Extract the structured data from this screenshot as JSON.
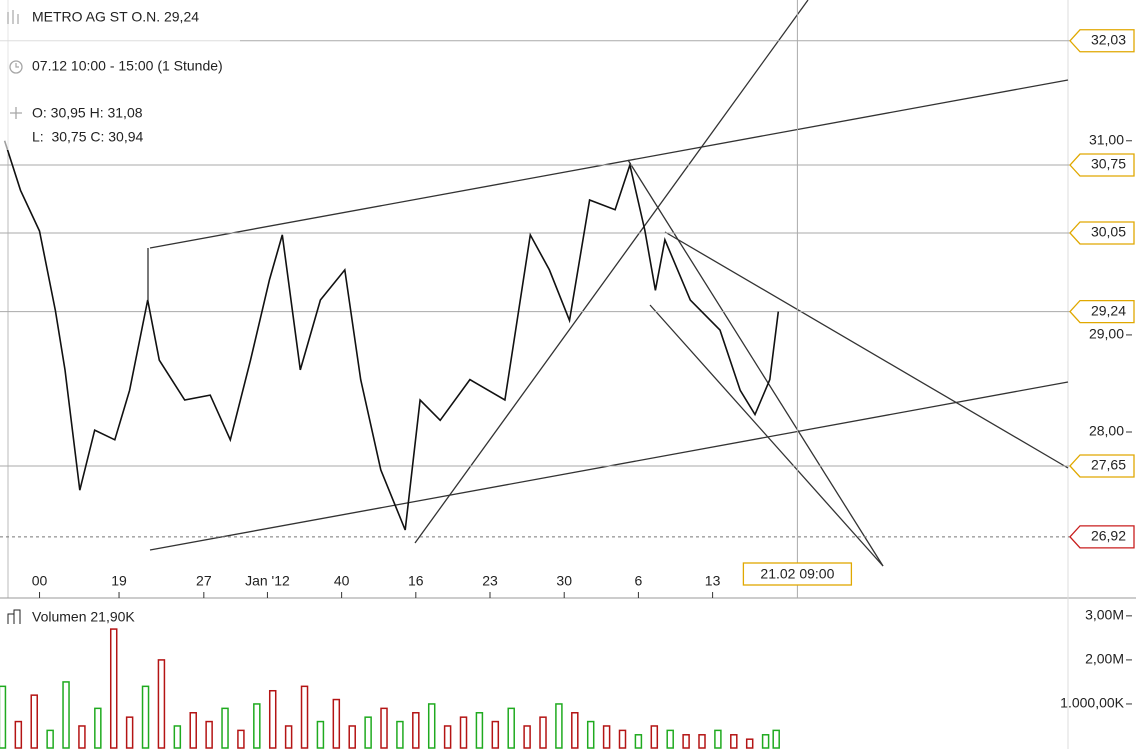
{
  "chart_data": [
    {
      "type": "line",
      "title": "METRO AG ST O.N. 29,24",
      "subtitle": "07.12 10:00 - 15:00 (1 Stunde)",
      "annotations": [
        "O: 30,95 H: 31,08",
        "L:  30,75 C: 30,94"
      ],
      "x": [
        8.2,
        9.7,
        11.5,
        13,
        13.9,
        15.3,
        16.7,
        18.6,
        20,
        21.7,
        22.8,
        25.2,
        27.6,
        29.5,
        31.4,
        33.2,
        34.4,
        36.1,
        38,
        40.3,
        41.8,
        43.7,
        46,
        47.4,
        49.3,
        52.1,
        55.4,
        57.8,
        59.6,
        61.5,
        63.4,
        65.8,
        67.2,
        68.6,
        69.6,
        70.5,
        72.9,
        75.7,
        77.6,
        79,
        80.4,
        81.2
      ],
      "values": [
        31.0,
        30.49,
        30.07,
        29.25,
        28.64,
        27.4,
        28.02,
        27.92,
        28.43,
        29.36,
        28.74,
        28.33,
        28.38,
        27.92,
        28.74,
        29.57,
        30.03,
        28.64,
        29.36,
        29.67,
        28.54,
        27.61,
        26.99,
        28.33,
        28.12,
        28.54,
        28.33,
        30.03,
        29.67,
        29.15,
        30.39,
        30.29,
        30.75,
        30.08,
        29.46,
        29.98,
        29.36,
        29.05,
        28.43,
        28.18,
        28.54,
        29.24
      ],
      "color": "#111111",
      "xlim": [
        7.77,
        108.53
      ],
      "xticks": [
        {
          "value": 11.5,
          "label": "00"
        },
        19,
        27,
        {
          "value": 33,
          "label": "Jan '12"
        },
        40,
        {
          "value": 47,
          "label": "16"
        },
        {
          "value": 54,
          "label": "23"
        },
        {
          "value": 61,
          "label": "30"
        },
        {
          "value": 68,
          "label": "6"
        },
        {
          "value": 75,
          "label": "13"
        }
      ],
      "ylim": [
        26.29,
        32.45
      ],
      "yticks": [
        {
          "value": 28,
          "label": "28,00"
        },
        {
          "value": 29,
          "label": "29,00"
        },
        {
          "value": 31,
          "label": "31,00"
        }
      ],
      "levels": [
        {
          "value": 32.03,
          "label": "32,03",
          "color": "#e0a800",
          "dashed": false
        },
        {
          "value": 30.75,
          "label": "30,75",
          "color": "#e0a800",
          "dashed": false
        },
        {
          "value": 30.05,
          "label": "30,05",
          "color": "#e0a800",
          "dashed": false
        },
        {
          "value": 29.24,
          "label": "29,24",
          "color": "#e0a800",
          "dashed": false
        },
        {
          "value": 27.65,
          "label": "27,65",
          "color": "#e0a800",
          "dashed": false
        },
        {
          "value": 26.92,
          "label": "26,92",
          "color": "#c81e1e",
          "dashed": true
        }
      ],
      "crosshair": {
        "value": 83,
        "label": "21.02 09:00"
      }
    },
    {
      "type": "bar",
      "title": "Volumen 21,90K",
      "x": [
        8,
        9.5,
        11,
        12.5,
        14,
        15.5,
        17,
        18.5,
        20,
        21.5,
        23,
        24.5,
        26,
        27.5,
        29,
        30.5,
        32,
        33.5,
        35,
        36.5,
        38,
        39.5,
        41,
        42.5,
        44,
        45.5,
        47,
        48.5,
        50,
        51.5,
        53,
        54.5,
        56,
        57.5,
        59,
        60.5,
        62,
        63.5,
        65,
        66.5,
        68,
        69.5,
        71,
        72.5,
        74,
        75.5,
        77,
        78.5,
        80,
        81
      ],
      "values": [
        1400000,
        600000,
        1200000,
        400000,
        1500000,
        500000,
        900000,
        2700000,
        700000,
        1400000,
        2000000,
        500000,
        800000,
        600000,
        900000,
        400000,
        1000000,
        1300000,
        500000,
        1400000,
        600000,
        1100000,
        500000,
        700000,
        900000,
        600000,
        800000,
        1000000,
        500000,
        700000,
        800000,
        600000,
        900000,
        500000,
        700000,
        1000000,
        800000,
        600000,
        500000,
        400000,
        300000,
        500000,
        400000,
        300000,
        300000,
        400000,
        300000,
        200000,
        300000,
        400000
      ],
      "colors": [
        "#1faa1f",
        "#b41414",
        "#b41414",
        "#1faa1f",
        "#1faa1f",
        "#b41414",
        "#1faa1f",
        "#b41414",
        "#b41414",
        "#1faa1f",
        "#b41414",
        "#1faa1f",
        "#b41414",
        "#b41414",
        "#1faa1f",
        "#b41414",
        "#1faa1f",
        "#b41414",
        "#b41414",
        "#b41414",
        "#1faa1f",
        "#b41414",
        "#b41414",
        "#1faa1f",
        "#b41414",
        "#1faa1f",
        "#b41414",
        "#1faa1f",
        "#b41414",
        "#b41414",
        "#1faa1f",
        "#b41414",
        "#1faa1f",
        "#b41414",
        "#b41414",
        "#1faa1f",
        "#b41414",
        "#1faa1f",
        "#b41414",
        "#b41414",
        "#1faa1f",
        "#b41414",
        "#1faa1f",
        "#b41414",
        "#b41414",
        "#1faa1f",
        "#b41414",
        "#b41414",
        "#1faa1f",
        "#1faa1f"
      ],
      "xlim": [
        7.77,
        108.53
      ],
      "ylim": [
        0,
        3360000
      ],
      "yticks": [
        {
          "value": 1000000,
          "label": "1.000,00K"
        },
        {
          "value": 2000000,
          "label": "2,00M"
        },
        {
          "value": 3000000,
          "label": "3,00M"
        }
      ]
    }
  ]
}
